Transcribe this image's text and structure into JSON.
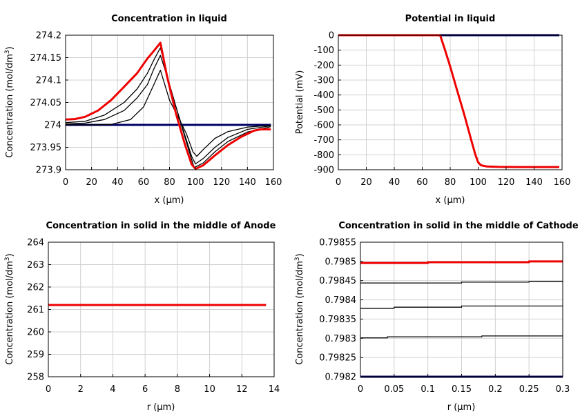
{
  "chart_data": [
    {
      "type": "line",
      "title": "Concentration in liquid",
      "xlabel": "x (µm)",
      "ylabel": "Concentration (mol/dm",
      "ylabel_sup": "3",
      "ylabel_tail": ")",
      "xlim": [
        0,
        160
      ],
      "ylim": [
        273.9,
        274.2
      ],
      "xticks": [
        0,
        20,
        40,
        60,
        80,
        100,
        120,
        140,
        160
      ],
      "yticks": [
        273.9,
        273.95,
        274,
        274.05,
        274.1,
        274.15,
        274.2
      ],
      "xtick_labels": [
        "0",
        "20",
        "40",
        "60",
        "80",
        "100",
        "120",
        "140",
        "160"
      ],
      "ytick_labels": [
        "273.9",
        "273.95",
        "274",
        "274.05",
        "274.1",
        "274.15",
        "274.2"
      ],
      "grid": true,
      "series": [
        {
          "color": "#000066",
          "width": 3,
          "x": [
            0,
            158
          ],
          "y": [
            274.0,
            274.0
          ]
        },
        {
          "color": "#000000",
          "width": 1.3,
          "x": [
            0,
            20,
            35,
            50,
            60,
            68,
            73,
            80,
            88,
            93,
            98,
            101,
            106,
            115,
            125,
            140,
            158
          ],
          "y": [
            274.0,
            274.0,
            274.001,
            274.012,
            274.04,
            274.09,
            274.122,
            274.055,
            274.01,
            273.98,
            273.94,
            273.93,
            273.945,
            273.97,
            273.985,
            273.995,
            273.999
          ]
        },
        {
          "color": "#000000",
          "width": 1.3,
          "x": [
            0,
            15,
            30,
            45,
            55,
            63,
            68,
            73,
            78,
            85,
            92,
            97,
            100,
            106,
            115,
            125,
            140,
            158
          ],
          "y": [
            274.002,
            274.004,
            274.012,
            274.032,
            274.06,
            274.09,
            274.125,
            274.155,
            274.11,
            274.04,
            273.975,
            273.93,
            273.913,
            273.925,
            273.95,
            273.972,
            273.99,
            273.998
          ]
        },
        {
          "color": "#000000",
          "width": 1.3,
          "x": [
            0,
            15,
            30,
            45,
            55,
            63,
            68,
            73,
            80,
            88,
            95,
            99,
            106,
            115,
            125,
            140,
            158
          ],
          "y": [
            274.005,
            274.008,
            274.022,
            274.05,
            274.08,
            274.115,
            274.145,
            274.172,
            274.09,
            274.01,
            273.942,
            273.905,
            273.915,
            273.94,
            273.963,
            273.984,
            273.996
          ]
        },
        {
          "color": "#ee0000",
          "width": 3,
          "x": [
            0,
            7,
            15,
            25,
            35,
            45,
            55,
            63,
            68,
            73,
            78,
            85,
            92,
            97,
            100,
            106,
            115,
            125,
            135,
            145,
            150,
            158
          ],
          "y": [
            274.012,
            274.013,
            274.018,
            274.032,
            274.055,
            274.085,
            274.115,
            274.148,
            274.165,
            274.183,
            274.11,
            274.025,
            273.955,
            273.912,
            273.902,
            273.91,
            273.932,
            273.955,
            273.973,
            273.987,
            273.99,
            273.99
          ]
        }
      ]
    },
    {
      "type": "line",
      "title": "Potential in liquid",
      "xlabel": "x (µm)",
      "ylabel": "Potential (mV)",
      "xlim": [
        0,
        160
      ],
      "ylim": [
        -900,
        0
      ],
      "xticks": [
        0,
        20,
        40,
        60,
        80,
        100,
        120,
        140,
        160
      ],
      "yticks": [
        -900,
        -800,
        -700,
        -600,
        -500,
        -400,
        -300,
        -200,
        -100,
        0
      ],
      "xtick_labels": [
        "0",
        "20",
        "40",
        "60",
        "80",
        "100",
        "120",
        "140",
        "160"
      ],
      "ytick_labels": [
        "-900",
        "-800",
        "-700",
        "-600",
        "-500",
        "-400",
        "-300",
        "-200",
        "-100",
        "0"
      ],
      "grid": true,
      "series": [
        {
          "color": "#000066",
          "width": 3,
          "x": [
            0,
            158
          ],
          "y": [
            0,
            0
          ]
        },
        {
          "color": "#ee0000",
          "width": 3,
          "x": [
            0,
            72,
            73,
            76,
            80,
            85,
            90,
            95,
            98,
            100,
            102,
            106,
            115,
            130,
            158
          ],
          "y": [
            0,
            0,
            -5,
            -90,
            -210,
            -370,
            -530,
            -700,
            -800,
            -850,
            -870,
            -878,
            -881,
            -882,
            -882
          ]
        }
      ]
    },
    {
      "type": "line",
      "title": "Concentration in solid in the middle of Anode",
      "xlabel": "r (µm)",
      "ylabel": "Concentration (mol/dm",
      "ylabel_sup": "3",
      "ylabel_tail": ")",
      "xlim": [
        0,
        14
      ],
      "ylim": [
        258,
        264
      ],
      "xticks": [
        0,
        2,
        4,
        6,
        8,
        10,
        12,
        14
      ],
      "yticks": [
        258,
        259,
        260,
        261,
        262,
        263,
        264
      ],
      "xtick_labels": [
        "0",
        "2",
        "4",
        "6",
        "8",
        "10",
        "12",
        "14"
      ],
      "ytick_labels": [
        "258",
        "259",
        "260",
        "261",
        "262",
        "263",
        "264"
      ],
      "grid": true,
      "series": [
        {
          "color": "#ee0000",
          "width": 3,
          "x": [
            0,
            13.5
          ],
          "y": [
            261.2,
            261.2
          ]
        }
      ]
    },
    {
      "type": "line",
      "title": "Concentration in solid in the middle of Cathode",
      "xlabel": "r (µm)",
      "ylabel": "Concentration (mol/dm",
      "ylabel_sup": "3",
      "ylabel_tail": ")",
      "xlim": [
        0,
        0.3
      ],
      "ylim": [
        0.7982,
        0.79855
      ],
      "xticks": [
        0,
        0.05,
        0.1,
        0.15,
        0.2,
        0.25,
        0.3
      ],
      "yticks": [
        0.7982,
        0.79825,
        0.7983,
        0.79835,
        0.7984,
        0.79845,
        0.7985,
        0.79855
      ],
      "xtick_labels": [
        "0",
        "0.05",
        "0.1",
        "0.15",
        "0.2",
        "0.25",
        "0.3"
      ],
      "ytick_labels": [
        "0.7982",
        "0.79825",
        "0.7983",
        "0.79835",
        "0.7984",
        "0.79845",
        "0.7985",
        "0.79855"
      ],
      "grid": true,
      "series": [
        {
          "color": "#000066",
          "width": 3,
          "x": [
            0,
            0.3
          ],
          "y": [
            0.7982,
            0.7982
          ]
        },
        {
          "color": "#000000",
          "width": 1.3,
          "x": [
            0,
            0.04,
            0.04,
            0.18,
            0.18,
            0.3
          ],
          "y": [
            0.798301,
            0.798301,
            0.798304,
            0.798304,
            0.798306,
            0.798306
          ]
        },
        {
          "color": "#000000",
          "width": 1.3,
          "x": [
            0,
            0.05,
            0.05,
            0.15,
            0.15,
            0.3
          ],
          "y": [
            0.798378,
            0.798378,
            0.798381,
            0.798381,
            0.798384,
            0.798384
          ]
        },
        {
          "color": "#000000",
          "width": 1.3,
          "x": [
            0,
            0.15,
            0.15,
            0.25,
            0.25,
            0.3
          ],
          "y": [
            0.798444,
            0.798444,
            0.798446,
            0.798446,
            0.798448,
            0.798448
          ]
        },
        {
          "color": "#ee0000",
          "width": 3,
          "x": [
            0,
            0.1,
            0.1,
            0.25,
            0.25,
            0.3
          ],
          "y": [
            0.798496,
            0.798496,
            0.798498,
            0.798498,
            0.7985,
            0.7985
          ]
        }
      ]
    }
  ]
}
